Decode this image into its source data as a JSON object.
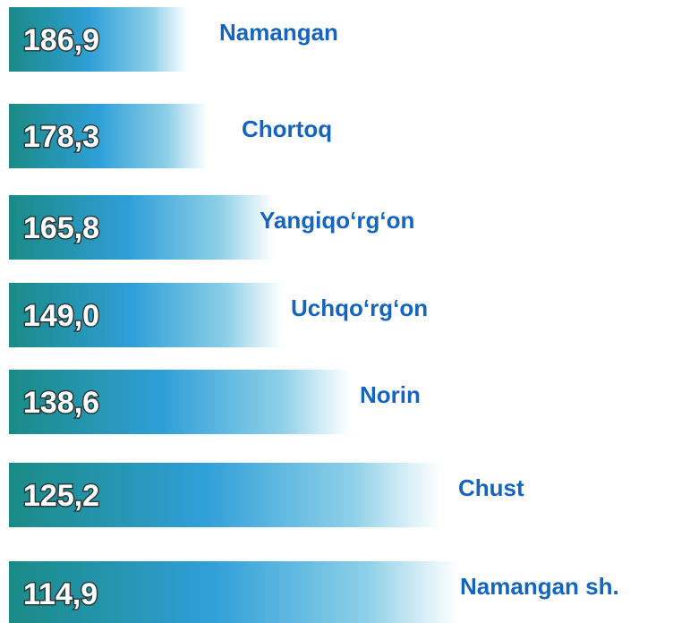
{
  "chart_data": {
    "type": "bar",
    "categories": [
      "Namangan",
      "Chortoq",
      "Yangiqo‘rg‘on",
      "Uchqo‘rg‘on",
      "Norin",
      "Chust",
      "Namangan sh."
    ],
    "values": [
      186.9,
      178.3,
      165.8,
      149.0,
      138.6,
      125.2,
      114.9
    ],
    "value_labels": [
      "186,9",
      "178,3",
      "165,8",
      "149,0",
      "138,6",
      "125,2",
      "114,9"
    ],
    "color": "#2f9fd8",
    "label_color": "#1565c0"
  }
}
